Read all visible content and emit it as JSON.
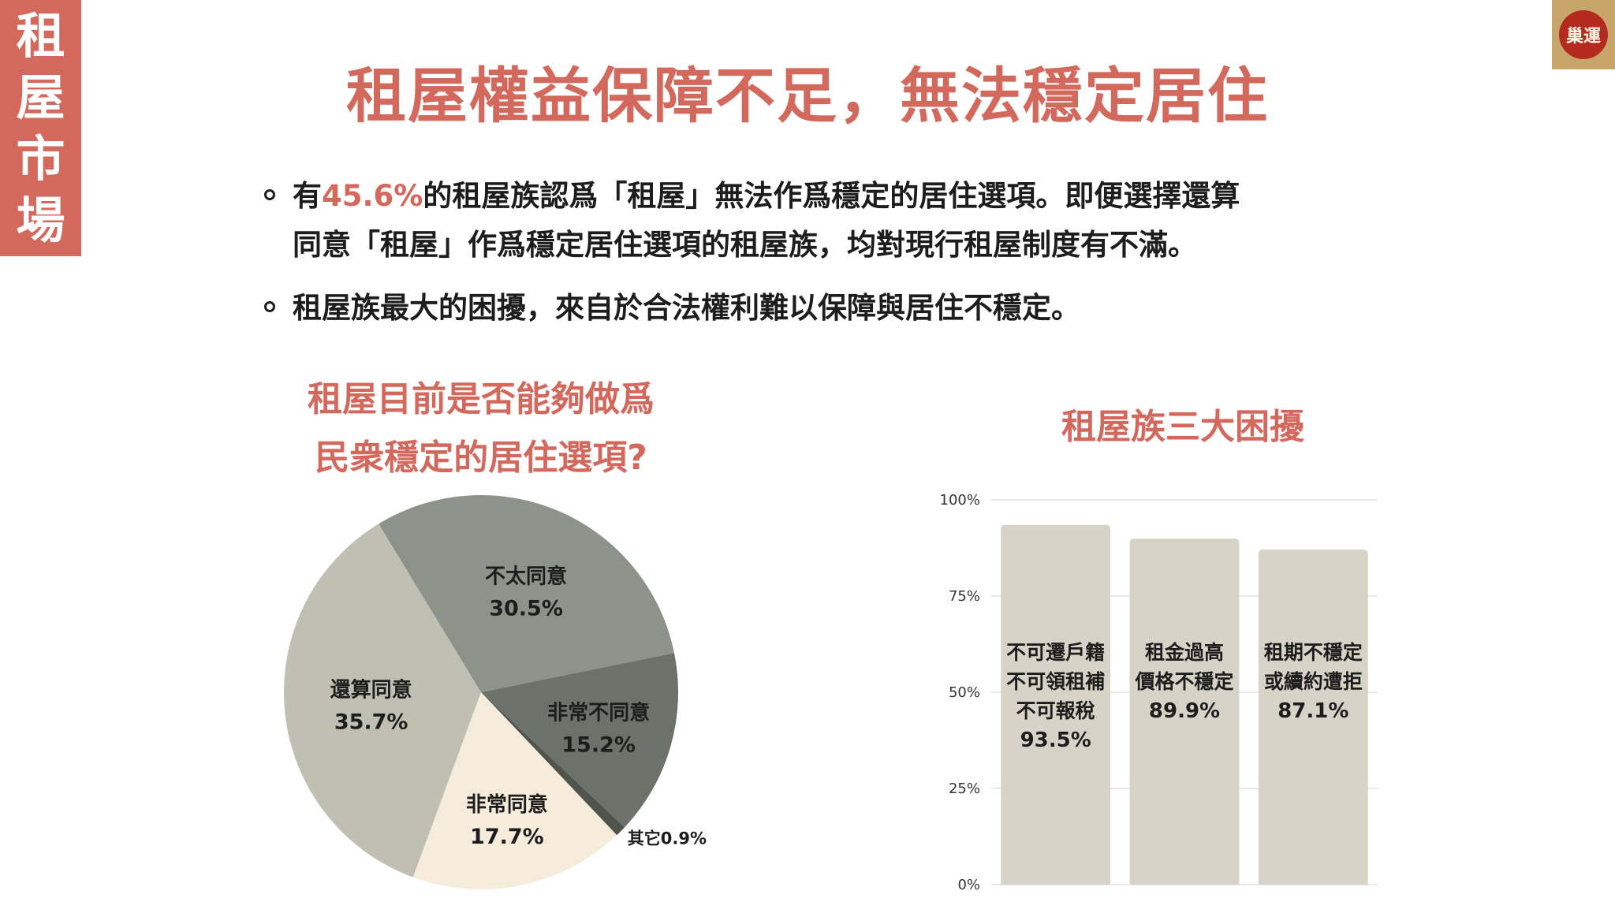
{
  "side_tag": {
    "chars": [
      "租",
      "屋",
      "市",
      "場"
    ]
  },
  "logo": {
    "text": "巢運"
  },
  "title": "租屋權益保障不足，無法穩定居住",
  "bullets": [
    {
      "pre": "有",
      "highlight": "45.6%",
      "line1_rest": "的租屋族認爲「租屋」無法作爲穩定的居住選項。即便選擇還算",
      "line2": "同意「租屋」作爲穩定居住選項的租屋族，均對現行租屋制度有不滿。"
    },
    {
      "text": "租屋族最大的困擾，來自於合法權利難以保障與居住不穩定。"
    }
  ],
  "colors": {
    "accent": "#d3685d",
    "pie_dark": "#6c726a",
    "pie_mid": "#8d9388",
    "pie_light": "#bfbfb2",
    "pie_cream": "#f6ecdc",
    "bar": "#d8d3c7"
  },
  "chart_data": [
    {
      "type": "pie",
      "title_lines": [
        "租屋目前是否能夠做爲",
        "民衆穩定的居住選項?"
      ],
      "slices": [
        {
          "label": "非常不同意",
          "value": 15.2,
          "value_label": "15.2%",
          "color": "#6c726a"
        },
        {
          "label": "其它",
          "value": 0.9,
          "value_label": "0.9%",
          "color": "#4f544d"
        },
        {
          "label": "非常同意",
          "value": 17.7,
          "value_label": "17.7%",
          "color": "#f6ecdc"
        },
        {
          "label": "還算同意",
          "value": 35.7,
          "value_label": "35.7%",
          "color": "#bfbfb2"
        },
        {
          "label": "不太同意",
          "value": 30.5,
          "value_label": "30.5%",
          "color": "#8d9388"
        }
      ]
    },
    {
      "type": "bar",
      "title": "租屋族三大困擾",
      "categories": [
        [
          "不可遷戶籍",
          "不可領租補",
          "不可報稅"
        ],
        [
          "租金過高",
          "價格不穩定"
        ],
        [
          "租期不穩定",
          "或續約遭拒"
        ]
      ],
      "values": [
        93.5,
        89.9,
        87.1
      ],
      "value_labels": [
        "93.5%",
        "89.9%",
        "87.1%"
      ],
      "ylim": [
        0,
        100
      ],
      "yticks": [
        "0%",
        "25%",
        "50%",
        "75%",
        "100%"
      ],
      "grid": true
    }
  ]
}
